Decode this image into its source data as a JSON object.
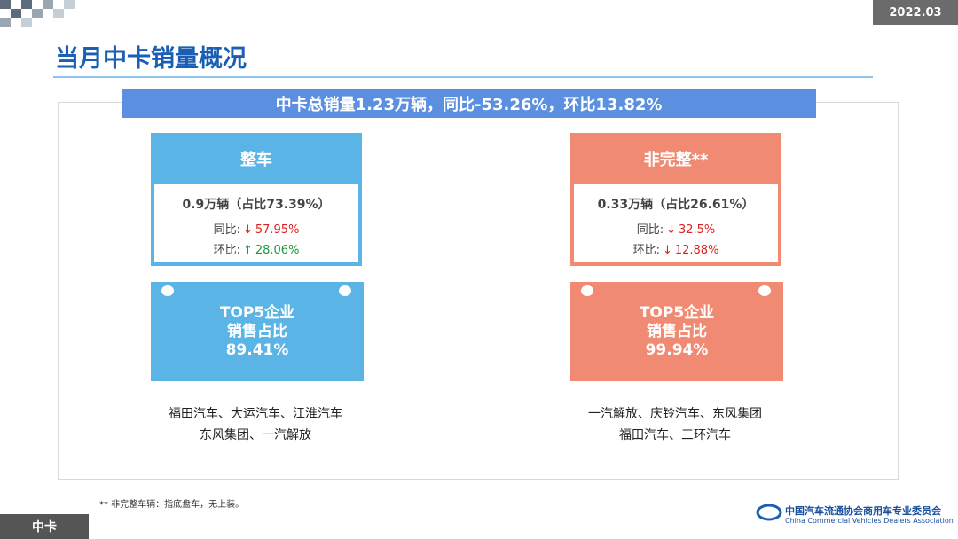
{
  "header": {
    "title": "当月中卡销量概况",
    "date": "2022.03"
  },
  "banner": "中卡总销量1.23万辆，同比-53.26%，环比13.82%",
  "panels": [
    {
      "title": "整车",
      "volume": "0.9万辆（占比73.39%）",
      "yoy_label": "同比:",
      "yoy_arrow": "↓",
      "yoy_value": "57.95%",
      "mom_label": "环比:",
      "mom_arrow": "↑",
      "mom_value": "28.06%",
      "top_title": "TOP5企业",
      "top_sub": "销售占比",
      "top_value": "89.41%",
      "companies": [
        "福田汽车、大运汽车、江淮汽车",
        "东风集团、一汽解放"
      ]
    },
    {
      "title": "非完整**",
      "volume": "0.33万辆（占比26.61%）",
      "yoy_label": "同比:",
      "yoy_arrow": "↓",
      "yoy_value": "32.5%",
      "mom_label": "环比:",
      "mom_arrow": "↓",
      "mom_value": "12.88%",
      "top_title": "TOP5企业",
      "top_sub": "销售占比",
      "top_value": "99.94%",
      "companies": [
        "一汽解放、庆铃汽车、东风集团",
        "福田汽车、三环汽车"
      ]
    }
  ],
  "footnote": "** 非完整车辆：指底盘车，无上装。",
  "footer": {
    "section": "中卡",
    "org_cn": "中国汽车流通协会商用车专业委员会",
    "org_en": "China Commercial Vehicles Dealers Association"
  }
}
